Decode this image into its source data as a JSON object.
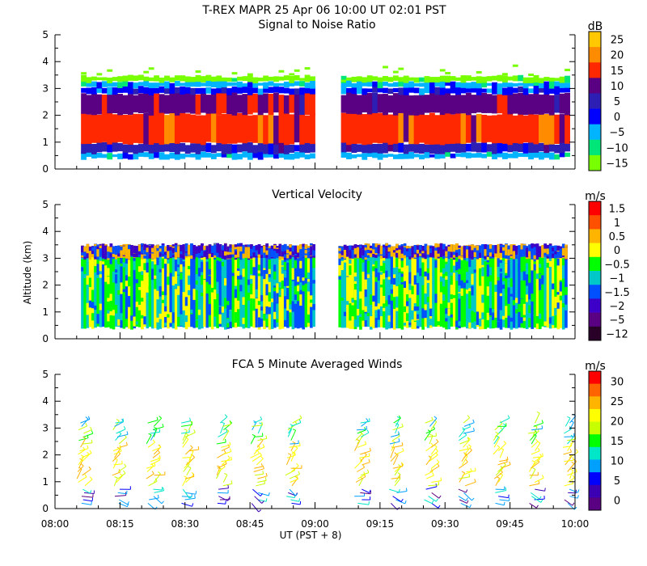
{
  "title": "T-REX  MAPR 25 Apr 06  10:00 UT  02:01  PST",
  "ylabel": "Altitude (km)",
  "xlabel": "UT  (PST + 8)",
  "x_ticks": [
    "08:00",
    "08:15",
    "08:30",
    "08:45",
    "09:00",
    "09:15",
    "09:30",
    "09:45",
    "10:00"
  ],
  "chart_data": [
    {
      "type": "heatmap",
      "title": "Signal to Noise Ratio",
      "unit": "dB",
      "x_range": [
        "08:00",
        "10:00"
      ],
      "ylim": [
        0,
        5
      ],
      "y_ticks": [
        "0",
        "1",
        "2",
        "3",
        "4",
        "5"
      ],
      "data_gaps": [
        [
          "09:00",
          "09:05"
        ]
      ],
      "colorbar_labels": [
        "25",
        "20",
        "15",
        "10",
        "5",
        "0",
        "−5",
        "−10",
        "−15"
      ],
      "colorbar_colors": [
        "#ffc800",
        "#ff8c00",
        "#ff2800",
        "#5a0082",
        "#2d1eb4",
        "#0000ff",
        "#00b4ff",
        "#00e678",
        "#78ff00"
      ],
      "profile": [
        {
          "alt": [
            0.4,
            0.6
          ],
          "color": "#00b4ff"
        },
        {
          "alt": [
            0.6,
            0.95
          ],
          "color": "#2d1eb4"
        },
        {
          "alt": [
            0.95,
            2.05
          ],
          "color": "#ff2800"
        },
        {
          "alt": [
            2.05,
            2.8
          ],
          "color": "#5a0082"
        },
        {
          "alt": [
            2.8,
            3.05
          ],
          "color": "#0000ff"
        },
        {
          "alt": [
            3.05,
            3.25
          ],
          "color": "#00b4ff"
        },
        {
          "alt": [
            3.25,
            3.45
          ],
          "color": "#78ff00"
        }
      ]
    },
    {
      "type": "heatmap",
      "title": "Vertical Velocity",
      "unit": "m/s",
      "x_range": [
        "08:00",
        "10:00"
      ],
      "ylim": [
        0,
        5
      ],
      "y_ticks": [
        "0",
        "1",
        "2",
        "3",
        "4",
        "5"
      ],
      "data_gaps": [
        [
          "09:00",
          "09:05"
        ]
      ],
      "colorbar_labels": [
        "1.5",
        "1",
        "0.5",
        "0",
        "−0.5",
        "−1",
        "−1.5",
        "−2",
        "−5",
        "−12"
      ],
      "colorbar_colors": [
        "#ff0000",
        "#ff5000",
        "#ffb400",
        "#ffff00",
        "#00ff00",
        "#00c8c8",
        "#0050ff",
        "#3c00c8",
        "#5a0082",
        "#280028"
      ],
      "profile": [
        {
          "alt": [
            0.4,
            3.3
          ],
          "colors": [
            "#00ff00",
            "#ffff00",
            "#00c8c8",
            "#0050ff"
          ]
        },
        {
          "alt": [
            3.0,
            3.5
          ],
          "colors": [
            "#3c00c8",
            "#ffb400",
            "#0050ff"
          ]
        }
      ]
    },
    {
      "type": "wind_barbs",
      "title": "FCA 5 Minute Averaged Winds",
      "unit": "m/s",
      "x_range": [
        "08:00",
        "10:00"
      ],
      "ylim": [
        0,
        5
      ],
      "y_ticks": [
        "0",
        "1",
        "2",
        "3",
        "4",
        "5"
      ],
      "colorbar_labels": [
        "30",
        "25",
        "20",
        "15",
        "10",
        "5",
        "0"
      ],
      "colorbar_colors": [
        "#ff0000",
        "#ff6400",
        "#ffb400",
        "#ffff00",
        "#c8ff00",
        "#00ff00",
        "#00e6c8",
        "#00a0ff",
        "#0000ff",
        "#3c00b4",
        "#5a0082"
      ],
      "profile_times": [
        "08:06",
        "08:14",
        "08:22",
        "08:30",
        "08:38",
        "08:46",
        "08:54",
        "09:10",
        "09:18",
        "09:26",
        "09:34",
        "09:42",
        "09:50",
        "09:58"
      ]
    }
  ]
}
